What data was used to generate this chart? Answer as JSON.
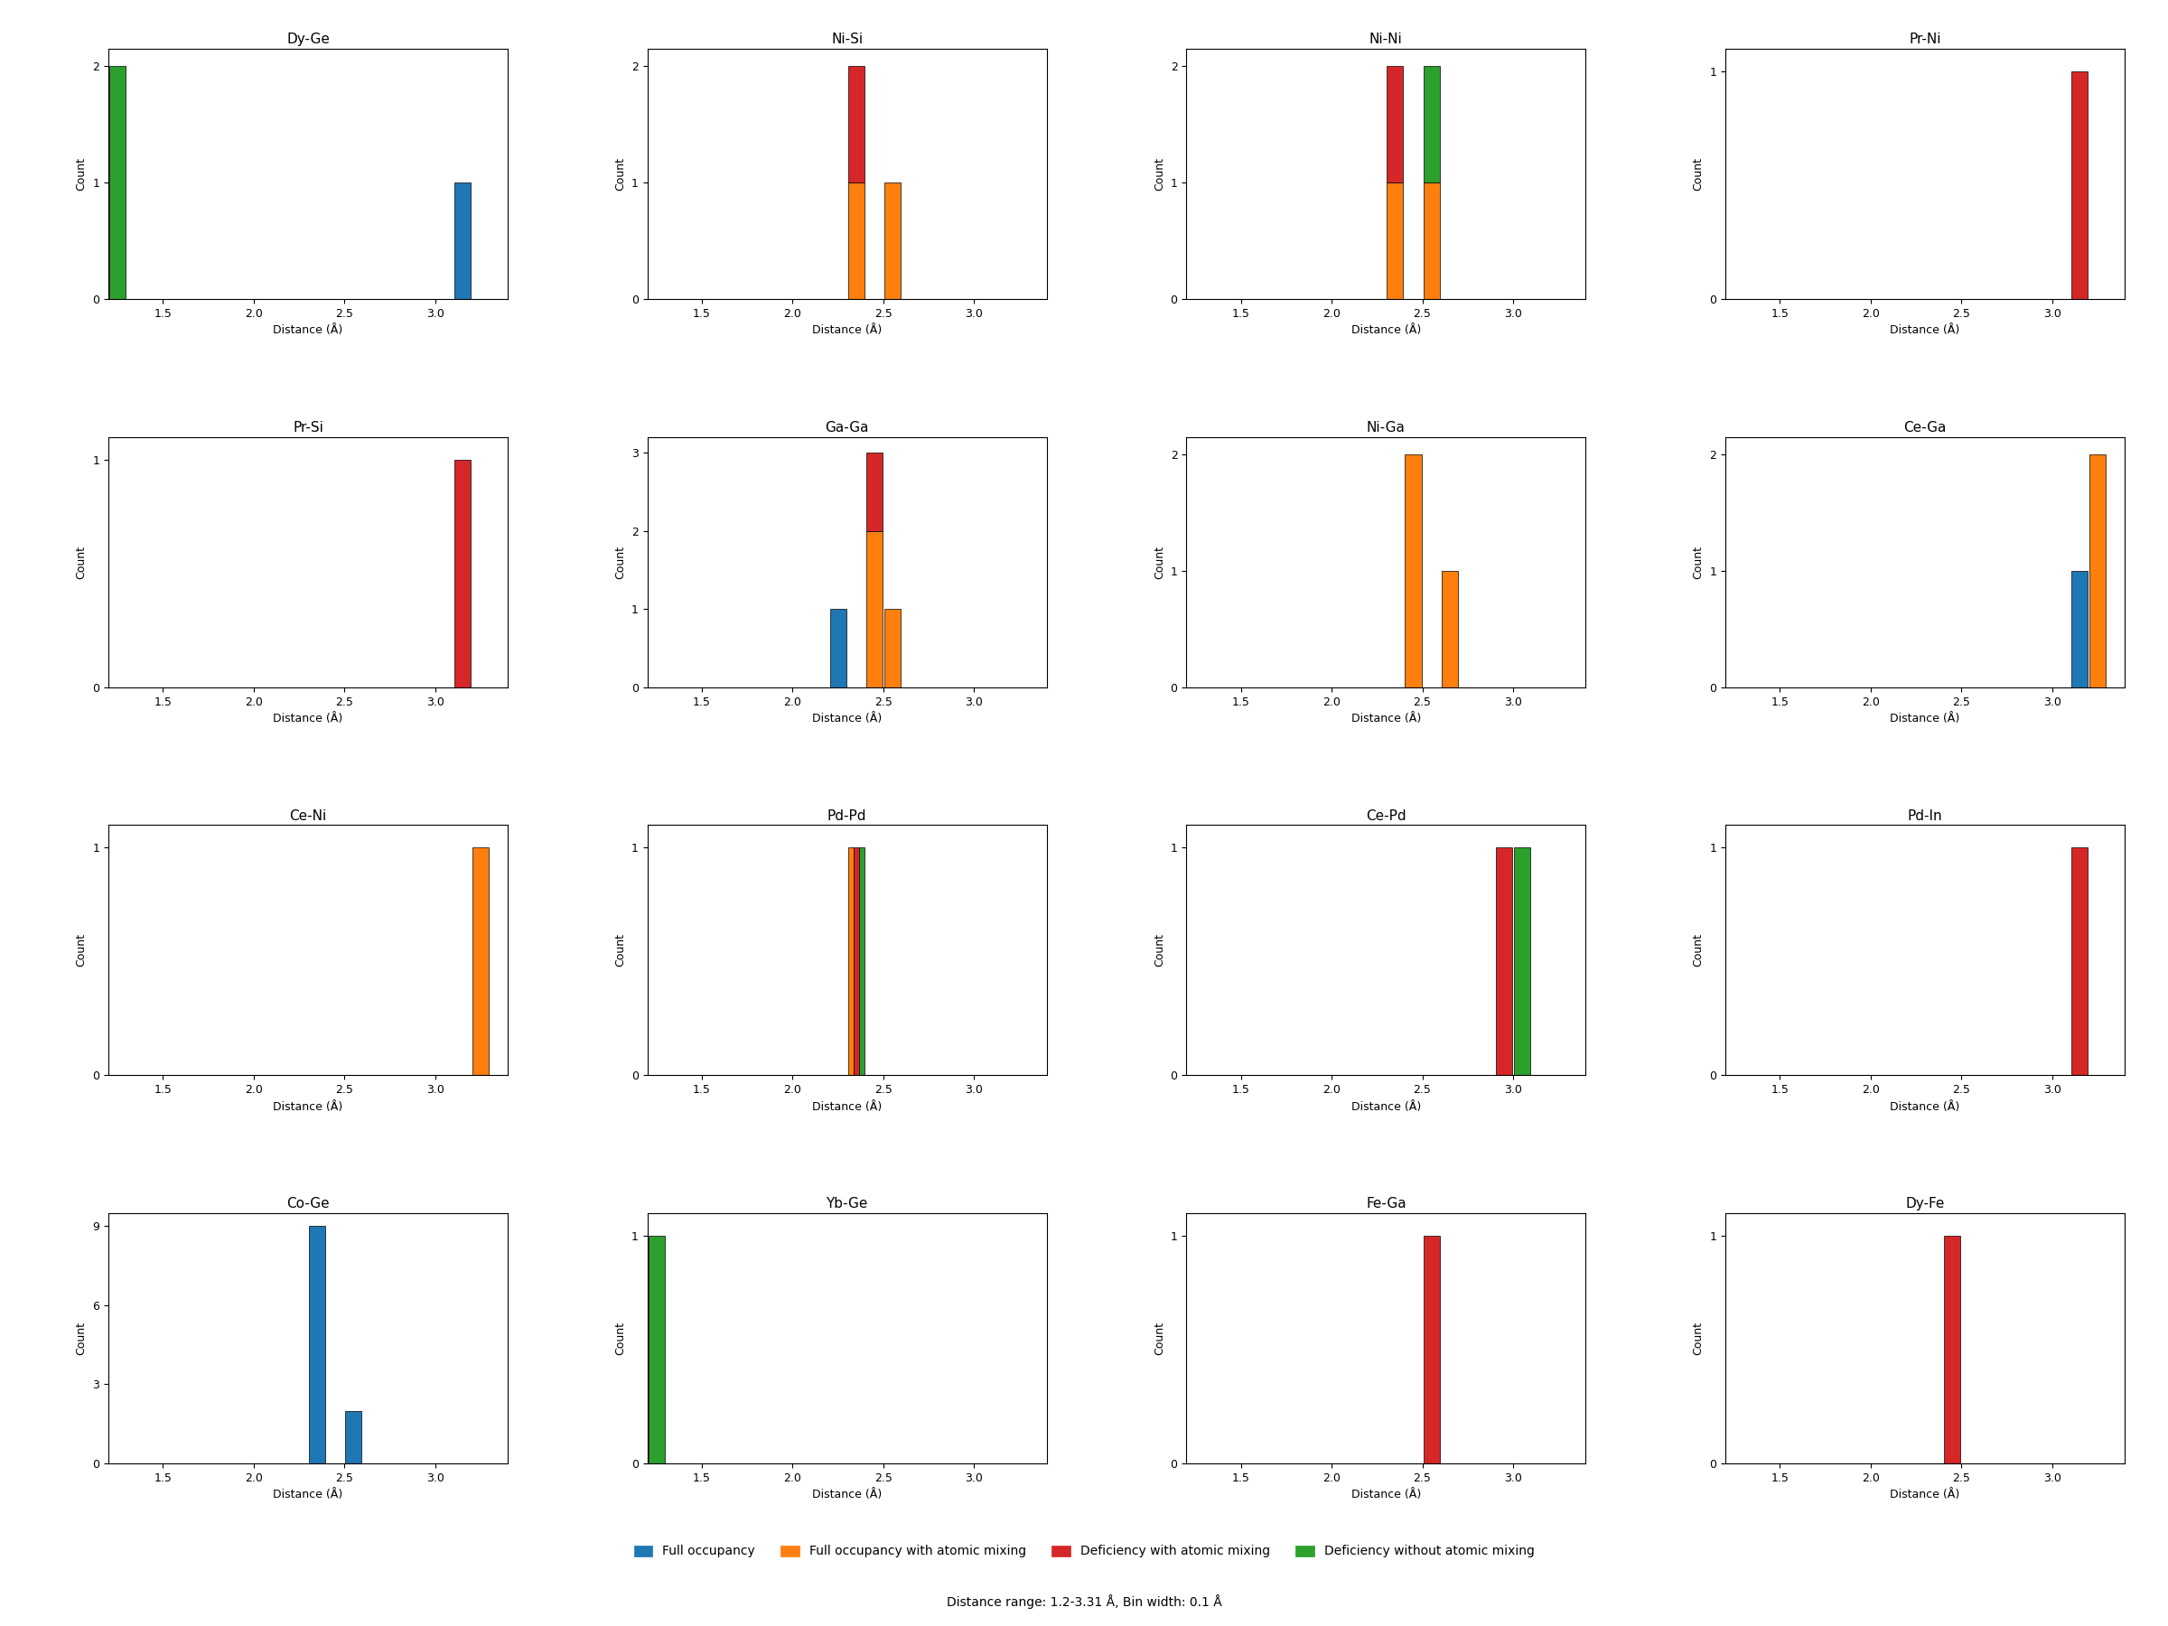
{
  "subplot_data": [
    {
      "title": "Dy-Ge",
      "stacked_bars": [
        {
          "bin": 1.2,
          "stack": [
            {
              "color": "#2ca02c",
              "count": 2
            }
          ]
        },
        {
          "bin": 3.1,
          "stack": [
            {
              "color": "#1f77b4",
              "count": 1
            }
          ]
        }
      ],
      "ymax": 2,
      "yticks": [
        0,
        1,
        2
      ]
    },
    {
      "title": "Ni-Si",
      "stacked_bars": [
        {
          "bin": 2.3,
          "stack": [
            {
              "color": "#ff7f0e",
              "count": 1
            },
            {
              "color": "#d62728",
              "count": 1
            }
          ]
        },
        {
          "bin": 2.5,
          "stack": [
            {
              "color": "#ff7f0e",
              "count": 1
            }
          ]
        }
      ],
      "ymax": 2,
      "yticks": [
        0,
        1,
        2
      ]
    },
    {
      "title": "Ni-Ni",
      "stacked_bars": [
        {
          "bin": 2.3,
          "stack": [
            {
              "color": "#ff7f0e",
              "count": 1
            },
            {
              "color": "#d62728",
              "count": 1
            }
          ]
        },
        {
          "bin": 2.5,
          "stack": [
            {
              "color": "#ff7f0e",
              "count": 1
            },
            {
              "color": "#2ca02c",
              "count": 1
            }
          ]
        }
      ],
      "ymax": 2,
      "yticks": [
        0,
        1,
        2
      ]
    },
    {
      "title": "Pr-Ni",
      "stacked_bars": [
        {
          "bin": 3.1,
          "stack": [
            {
              "color": "#d62728",
              "count": 1
            }
          ]
        }
      ],
      "ymax": 1,
      "yticks": [
        0,
        1
      ]
    },
    {
      "title": "Pr-Si",
      "stacked_bars": [
        {
          "bin": 3.1,
          "stack": [
            {
              "color": "#d62728",
              "count": 1
            }
          ]
        }
      ],
      "ymax": 1,
      "yticks": [
        0,
        1
      ]
    },
    {
      "title": "Ga-Ga",
      "stacked_bars": [
        {
          "bin": 2.2,
          "stack": [
            {
              "color": "#1f77b4",
              "count": 1
            }
          ]
        },
        {
          "bin": 2.4,
          "stack": [
            {
              "color": "#ff7f0e",
              "count": 2
            },
            {
              "color": "#d62728",
              "count": 1
            }
          ]
        },
        {
          "bin": 2.5,
          "stack": [
            {
              "color": "#ff7f0e",
              "count": 1
            }
          ]
        }
      ],
      "ymax": 3,
      "yticks": [
        0,
        1,
        2,
        3
      ]
    },
    {
      "title": "Ni-Ga",
      "stacked_bars": [
        {
          "bin": 2.4,
          "stack": [
            {
              "color": "#ff7f0e",
              "count": 2
            }
          ]
        },
        {
          "bin": 2.6,
          "stack": [
            {
              "color": "#ff7f0e",
              "count": 1
            }
          ]
        }
      ],
      "ymax": 2,
      "yticks": [
        0,
        1,
        2
      ]
    },
    {
      "title": "Ce-Ga",
      "stacked_bars": [
        {
          "bin": 3.1,
          "stack": [
            {
              "color": "#1f77b4",
              "count": 1
            }
          ]
        },
        {
          "bin": 3.2,
          "stack": [
            {
              "color": "#ff7f0e",
              "count": 2
            }
          ]
        }
      ],
      "ymax": 2,
      "yticks": [
        0,
        1,
        2
      ]
    },
    {
      "title": "Ce-Ni",
      "stacked_bars": [
        {
          "bin": 3.2,
          "stack": [
            {
              "color": "#ff7f0e",
              "count": 1
            }
          ]
        }
      ],
      "ymax": 1,
      "yticks": [
        0,
        1
      ]
    },
    {
      "title": "Pd-Pd",
      "stacked_bars": [
        {
          "bin": 2.3,
          "stack": [
            {
              "color": "#ff7f0e",
              "count": 1
            },
            {
              "color": "#d62728",
              "count": 0
            },
            {
              "color": "#2ca02c",
              "count": 0
            }
          ]
        },
        {
          "bin": 2.4,
          "stack": [
            {
              "color": "#d62728",
              "count": 1
            }
          ]
        },
        {
          "bin": 2.3,
          "stack": [
            {
              "color": "#2ca02c",
              "count": 1
            }
          ]
        }
      ],
      "ymax": 1,
      "yticks": [
        0,
        1
      ]
    },
    {
      "title": "Ce-Pd",
      "stacked_bars": [
        {
          "bin": 2.9,
          "stack": [
            {
              "color": "#d62728",
              "count": 1
            }
          ]
        },
        {
          "bin": 3.0,
          "stack": [
            {
              "color": "#2ca02c",
              "count": 1
            }
          ]
        }
      ],
      "ymax": 1,
      "yticks": [
        0,
        1
      ]
    },
    {
      "title": "Pd-In",
      "stacked_bars": [
        {
          "bin": 3.1,
          "stack": [
            {
              "color": "#d62728",
              "count": 1
            }
          ]
        }
      ],
      "ymax": 1,
      "yticks": [
        0,
        1
      ]
    },
    {
      "title": "Co-Ge",
      "stacked_bars": [
        {
          "bin": 2.3,
          "stack": [
            {
              "color": "#1f77b4",
              "count": 9
            }
          ]
        },
        {
          "bin": 2.5,
          "stack": [
            {
              "color": "#1f77b4",
              "count": 2
            }
          ]
        }
      ],
      "ymax": 9,
      "yticks": [
        0,
        3,
        6,
        9
      ]
    },
    {
      "title": "Yb-Ge",
      "stacked_bars": [
        {
          "bin": 1.2,
          "stack": [
            {
              "color": "#2ca02c",
              "count": 1
            }
          ]
        }
      ],
      "ymax": 1,
      "yticks": [
        0,
        1
      ]
    },
    {
      "title": "Fe-Ga",
      "stacked_bars": [
        {
          "bin": 2.5,
          "stack": [
            {
              "color": "#d62728",
              "count": 1
            }
          ]
        }
      ],
      "ymax": 1,
      "yticks": [
        0,
        1
      ]
    },
    {
      "title": "Dy-Fe",
      "stacked_bars": [
        {
          "bin": 2.4,
          "stack": [
            {
              "color": "#d62728",
              "count": 1
            }
          ]
        }
      ],
      "ymax": 1,
      "yticks": [
        0,
        1
      ]
    }
  ],
  "nrows": 4,
  "ncols": 4,
  "xmin": 1.2,
  "xmax": 3.4,
  "bin_width": 0.1,
  "xlabel": "Distance (Å)",
  "ylabel": "Count",
  "xticks": [
    1.5,
    2.0,
    2.5,
    3.0
  ],
  "colors": {
    "full_occupancy": "#1f77b4",
    "full_occupancy_mixing": "#ff7f0e",
    "deficiency_mixing": "#d62728",
    "deficiency_no_mixing": "#2ca02c"
  },
  "legend_labels": [
    "Full occupancy",
    "Full occupancy with atomic mixing",
    "Deficiency with atomic mixing",
    "Deficiency without atomic mixing"
  ],
  "footer": "Distance range: 1.2-3.31 Å, Bin width: 0.1 Å"
}
